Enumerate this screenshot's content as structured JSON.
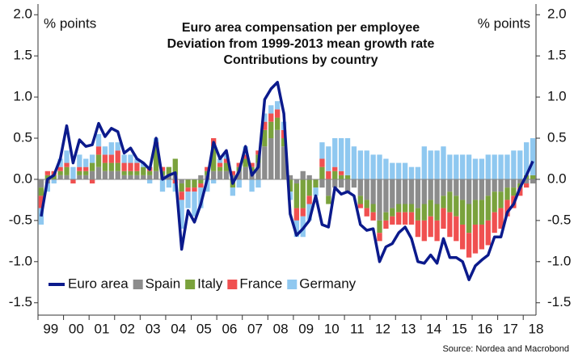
{
  "chart_data": {
    "type": "bar",
    "stacked": true,
    "title": [
      "Euro area compensation per employee",
      "Deviation from 1999-2013 mean growth rate",
      "Contributions by country"
    ],
    "y_label": "% points",
    "y2_label": "% points",
    "source": "Source: Nordea and Macrobond",
    "ylim": [
      -1.65,
      2.13
    ],
    "y2lim": [
      -1.65,
      2.13
    ],
    "yticks": [
      -1.5,
      {
        "value": -1,
        "label": "-1.0"
      },
      -0.5,
      {
        "value": 0,
        "label": "0.0"
      },
      0.5,
      {
        "value": 1,
        "label": "1.0"
      },
      1.5,
      {
        "value": 2,
        "label": "2.0"
      }
    ],
    "y2ticks": [
      -1.5,
      {
        "value": -1,
        "label": "-1.0"
      },
      -0.5,
      {
        "value": 0,
        "label": "0.0"
      },
      0.5,
      {
        "value": 1,
        "label": "1.0"
      },
      1.5,
      {
        "value": 2,
        "label": "2.0"
      }
    ],
    "legend": "lower left",
    "categories": [
      null,
      "99",
      null,
      null,
      null,
      "00",
      null,
      null,
      null,
      "01",
      null,
      null,
      null,
      "02",
      null,
      null,
      null,
      "03",
      null,
      null,
      null,
      "04",
      null,
      null,
      null,
      "05",
      null,
      null,
      null,
      "06",
      null,
      null,
      null,
      "07",
      null,
      null,
      null,
      "08",
      null,
      null,
      null,
      "09",
      null,
      null,
      null,
      "10",
      null,
      null,
      null,
      "11",
      null,
      null,
      null,
      "12",
      null,
      null,
      null,
      "13",
      null,
      null,
      null,
      "14",
      null,
      null,
      null,
      "15",
      null,
      null,
      null,
      "16",
      null,
      null,
      null,
      "17",
      null,
      null,
      null,
      "18"
    ],
    "series": [
      {
        "name": "Euro area",
        "type": "line",
        "color": "#0b1a8c",
        "values": [
          -0.45,
          0.0,
          0.05,
          0.25,
          0.65,
          0.2,
          0.48,
          0.4,
          0.42,
          0.68,
          0.52,
          0.62,
          0.58,
          0.32,
          0.38,
          0.25,
          0.2,
          0.12,
          0.5,
          0.0,
          0.05,
          0.08,
          -0.85,
          -0.38,
          -0.52,
          -0.3,
          0.0,
          0.45,
          0.25,
          0.35,
          -0.05,
          0.1,
          0.4,
          0.05,
          0.15,
          0.97,
          1.1,
          1.18,
          0.8,
          -0.42,
          -0.68,
          -0.6,
          -0.5,
          -0.2,
          -0.55,
          -0.58,
          -0.1,
          -0.18,
          -0.15,
          -0.2,
          -0.55,
          -0.62,
          -0.6,
          -1.0,
          -0.82,
          -0.78,
          -0.65,
          -0.58,
          -0.72,
          -1.0,
          -1.02,
          -0.92,
          -1.02,
          -0.72,
          -0.95,
          -0.95,
          -1.0,
          -1.22,
          -1.05,
          -0.98,
          -0.92,
          -0.7,
          -0.7,
          -0.4,
          -0.3,
          -0.1,
          0.05,
          0.22
        ]
      },
      {
        "name": "Spain",
        "type": "bar",
        "color": "#8c8c8c",
        "values": [
          -0.1,
          -0.05,
          0,
          0.05,
          0.05,
          0,
          0.05,
          0.05,
          0.1,
          0.15,
          0.1,
          0.1,
          0.1,
          0.05,
          0.05,
          0.05,
          0.05,
          0.05,
          0.1,
          0.05,
          0.05,
          0.05,
          -0.05,
          0,
          0,
          0.05,
          0.05,
          0.1,
          0.1,
          0.1,
          0.05,
          0.1,
          0.15,
          0.1,
          0.2,
          0.4,
          0.5,
          0.6,
          0.4,
          0.05,
          -0.05,
          0.1,
          0.05,
          0,
          -0.1,
          -0.2,
          -0.1,
          -0.1,
          -0.15,
          -0.1,
          -0.2,
          -0.25,
          -0.3,
          -0.5,
          -0.4,
          -0.35,
          -0.3,
          -0.3,
          -0.3,
          -0.35,
          -0.3,
          -0.25,
          -0.3,
          -0.2,
          -0.15,
          -0.2,
          -0.25,
          -0.3,
          -0.25,
          -0.25,
          -0.2,
          -0.15,
          -0.15,
          -0.1,
          -0.1,
          -0.05,
          -0.05,
          -0.05
        ]
      },
      {
        "name": "Italy",
        "type": "bar",
        "color": "#7aa23c",
        "values": [
          -0.1,
          0.05,
          0.05,
          0.05,
          0.1,
          0,
          0.05,
          0.05,
          0.1,
          0.15,
          0.1,
          0.1,
          0.1,
          0.05,
          0.05,
          0.05,
          0.1,
          0.05,
          0.3,
          0.05,
          0.1,
          0.2,
          -0.1,
          -0.1,
          -0.1,
          -0.05,
          0.05,
          0.3,
          0.05,
          0.1,
          -0.1,
          0.05,
          0.1,
          0.05,
          0.1,
          0.2,
          0.2,
          0.15,
          0.1,
          -0.15,
          -0.3,
          -0.35,
          -0.2,
          -0.1,
          0.15,
          -0.1,
          0.1,
          0.05,
          0.05,
          0,
          -0.1,
          -0.1,
          -0.1,
          -0.15,
          -0.1,
          -0.1,
          -0.1,
          -0.1,
          -0.1,
          -0.15,
          -0.2,
          -0.2,
          -0.2,
          -0.15,
          -0.25,
          -0.25,
          -0.3,
          -0.35,
          -0.3,
          -0.3,
          -0.3,
          -0.25,
          -0.2,
          -0.15,
          -0.1,
          -0.05,
          0.05,
          0.05
        ]
      },
      {
        "name": "France",
        "type": "bar",
        "color": "#f05050",
        "values": [
          -0.15,
          0.05,
          0.05,
          0.05,
          0.05,
          -0.05,
          0.05,
          0.05,
          -0.05,
          0.1,
          0.1,
          0.1,
          0.15,
          0.1,
          0.1,
          0.1,
          0,
          0.05,
          0.05,
          0.05,
          0,
          -0.05,
          -0.1,
          -0.05,
          -0.05,
          -0.05,
          0.05,
          0.1,
          0.05,
          0.05,
          0.05,
          0.05,
          0.05,
          0.05,
          0.05,
          0.1,
          0.1,
          0.1,
          0.1,
          0,
          -0.15,
          -0.1,
          -0.1,
          0,
          0.1,
          0.1,
          0.05,
          0.05,
          0,
          0,
          -0.05,
          -0.1,
          -0.1,
          -0.1,
          -0.1,
          -0.1,
          -0.15,
          -0.15,
          -0.15,
          -0.2,
          -0.25,
          -0.25,
          -0.25,
          -0.25,
          -0.3,
          -0.3,
          -0.3,
          -0.3,
          -0.35,
          -0.3,
          -0.3,
          -0.25,
          -0.25,
          -0.2,
          -0.15,
          -0.1,
          -0.05,
          0
        ]
      },
      {
        "name": "Germany",
        "type": "bar",
        "color": "#8fc8f0",
        "values": [
          -0.2,
          -0.1,
          -0.05,
          0.1,
          0.15,
          0.15,
          0.15,
          0.1,
          0.1,
          0.15,
          0.1,
          0.15,
          0.1,
          0.1,
          0.1,
          0.05,
          0.05,
          -0.05,
          0.05,
          -0.15,
          -0.1,
          -0.1,
          -0.35,
          -0.2,
          -0.3,
          -0.25,
          -0.15,
          -0.05,
          0.05,
          0.05,
          -0.1,
          -0.1,
          0.1,
          -0.15,
          -0.1,
          0.1,
          0.1,
          0.1,
          0.1,
          -0.1,
          -0.2,
          -0.25,
          -0.2,
          -0.1,
          0.2,
          0.3,
          0.35,
          0.4,
          0.45,
          0.4,
          0.35,
          0.35,
          0.3,
          0.3,
          0.25,
          0.2,
          0.2,
          0.2,
          0.15,
          0.15,
          0.4,
          0.35,
          0.35,
          0.4,
          0.3,
          0.3,
          0.3,
          0.3,
          0.25,
          0.25,
          0.3,
          0.3,
          0.3,
          0.3,
          0.35,
          0.35,
          0.4,
          0.45
        ]
      }
    ]
  }
}
